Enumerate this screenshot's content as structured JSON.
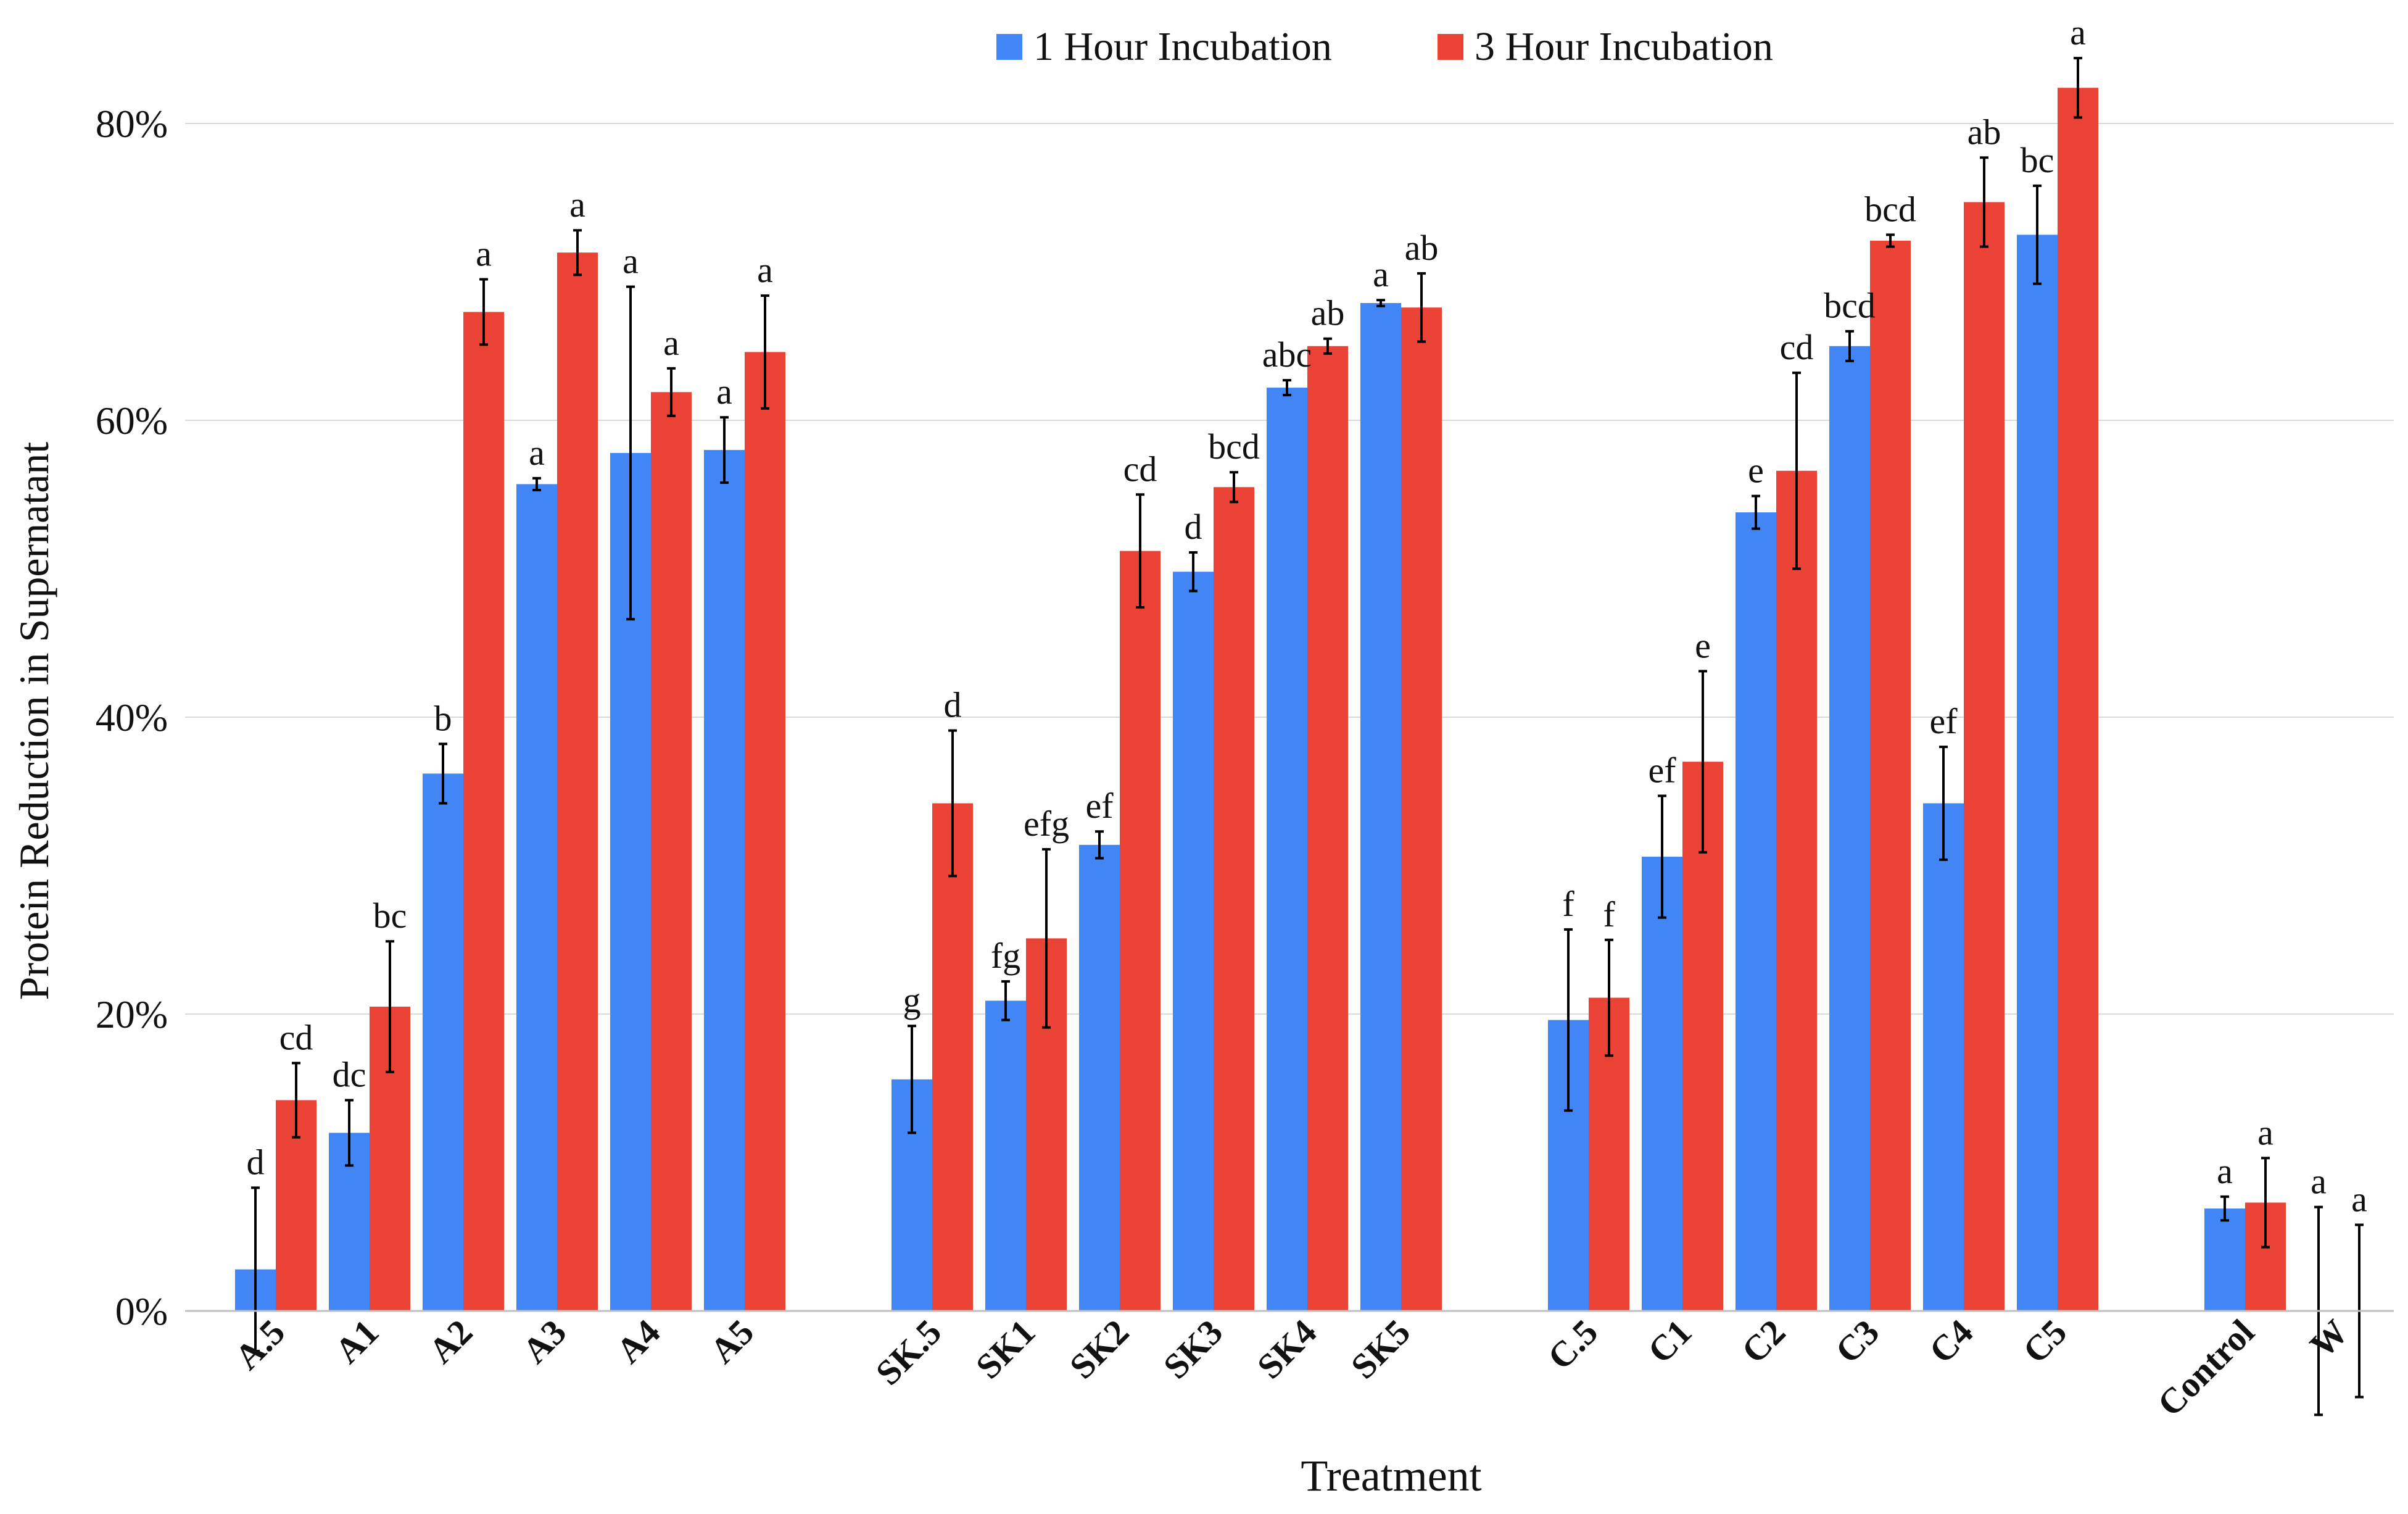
{
  "chart_data": {
    "type": "bar",
    "title": "",
    "xlabel": "Treatment",
    "ylabel": "Protein Reduction in Supernatant",
    "ylim": [
      0,
      0.85
    ],
    "y_ticks": [
      {
        "value": 0,
        "label": "0%"
      },
      {
        "value": 0.2,
        "label": "20%"
      },
      {
        "value": 0.4,
        "label": "40%"
      },
      {
        "value": 0.6,
        "label": "60%"
      },
      {
        "value": 0.8,
        "label": "80%"
      }
    ],
    "grid": true,
    "legend_position": "top",
    "categories": [
      "A.5",
      "A1",
      "A2",
      "A3",
      "A4",
      "A5",
      "SK.5",
      "SK1",
      "SK2",
      "SK3",
      "SK4",
      "SK5",
      "C.5",
      "C1",
      "C2",
      "C3",
      "C4",
      "C5",
      "Control",
      "W"
    ],
    "groups": [
      [
        "A.5",
        "A1",
        "A2",
        "A3",
        "A4",
        "A5"
      ],
      [
        "SK.5",
        "SK1",
        "SK2",
        "SK3",
        "SK4",
        "SK5"
      ],
      [
        "C.5",
        "C1",
        "C2",
        "C3",
        "C4",
        "C5"
      ],
      [
        "Control",
        "W"
      ]
    ],
    "series": [
      {
        "name": "1 Hour Incubation",
        "color": "#4285f4",
        "values": [
          0.028,
          0.12,
          0.362,
          0.557,
          0.578,
          0.58,
          0.156,
          0.209,
          0.314,
          0.498,
          0.622,
          0.679,
          0.196,
          0.306,
          0.538,
          0.65,
          0.342,
          0.725,
          0.069,
          0.0
        ],
        "errors": [
          0.055,
          0.022,
          0.02,
          0.004,
          0.112,
          0.022,
          0.036,
          0.013,
          0.009,
          0.013,
          0.005,
          0.002,
          0.061,
          0.041,
          0.011,
          0.01,
          0.038,
          0.033,
          0.008,
          0.07
        ],
        "labels": [
          "d",
          "dc",
          "b",
          "a",
          "a",
          "a",
          "g",
          "fg",
          "ef",
          "d",
          "abc",
          "a",
          "f",
          "ef",
          "e",
          "bcd",
          "ef",
          "bc",
          "a",
          "a"
        ]
      },
      {
        "name": "3 Hour Incubation",
        "color": "#ea4335",
        "values": [
          0.142,
          0.205,
          0.673,
          0.713,
          0.619,
          0.646,
          0.342,
          0.251,
          0.512,
          0.555,
          0.65,
          0.676,
          0.211,
          0.37,
          0.566,
          0.721,
          0.747,
          0.824,
          0.073,
          0.0
        ],
        "errors": [
          0.025,
          0.044,
          0.022,
          0.015,
          0.016,
          0.038,
          0.049,
          0.06,
          0.038,
          0.01,
          0.005,
          0.023,
          0.039,
          0.061,
          0.066,
          0.004,
          0.03,
          0.02,
          0.03,
          0.058
        ],
        "labels": [
          "cd",
          "bc",
          "a",
          "a",
          "a",
          "a",
          "d",
          "efg",
          "cd",
          "bcd",
          "ab",
          "ab",
          "f",
          "e",
          "cd",
          "bcd",
          "ab",
          "a",
          "a",
          "a"
        ]
      }
    ]
  }
}
